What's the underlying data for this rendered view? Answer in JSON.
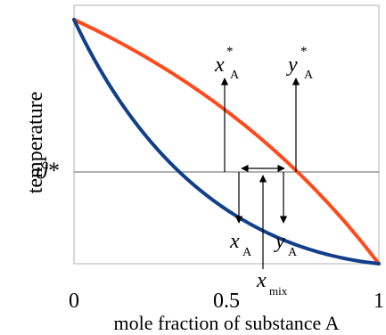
{
  "diagram": {
    "y_axis_label": "temperature",
    "x_axis_label": "mole fraction of substance A",
    "x_ticks": [
      "0",
      "0.5",
      "1"
    ],
    "isotherm_label": "ϑ*",
    "colors": {
      "dew_curve": "#ff4a1c",
      "bubble_curve": "#123f8a",
      "lines": "#000000",
      "isotherm": "#808080",
      "frame": "#b0b0b0"
    },
    "labels": {
      "x_a_star": {
        "base": "x",
        "sup": "*",
        "sub": "A"
      },
      "y_a_star": {
        "base": "y",
        "sup": "*",
        "sub": "A"
      },
      "x_a": {
        "base": "x",
        "sub": "A"
      },
      "y_a": {
        "base": "y",
        "sub": "A"
      },
      "x_mix": {
        "base": "x",
        "sub": "mix"
      }
    }
  }
}
